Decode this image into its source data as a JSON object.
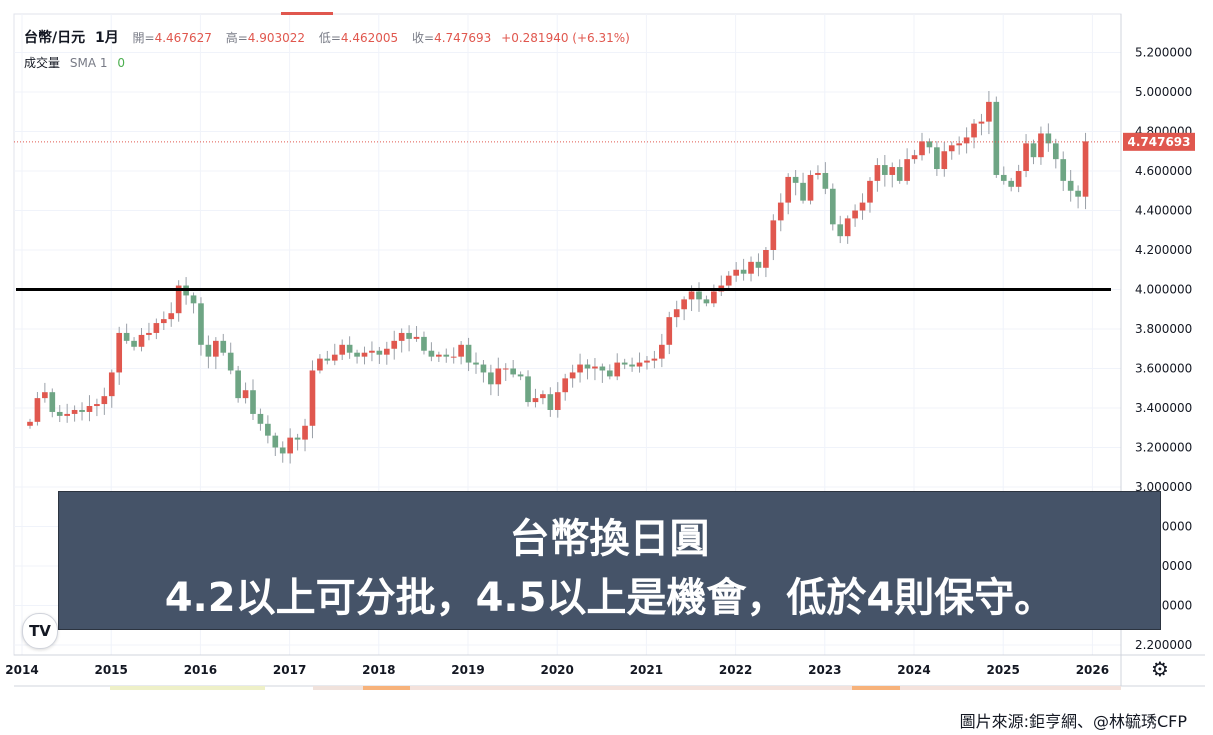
{
  "legend": {
    "symbol": "台幣/日元",
    "period": "1月",
    "open_label": "開=",
    "open": "4.467627",
    "high_label": "高=",
    "high": "4.903022",
    "low_label": "低=",
    "low": "4.462005",
    "close_label": "收=",
    "close": "4.747693",
    "change": "+0.281940 (+6.31%)"
  },
  "volume": {
    "label": "成交量",
    "sma": "SMA 1",
    "value": "0"
  },
  "banner": {
    "line1": "台幣換日圓",
    "line2": "4.2以上可分批，4.5以上是機會，低於4則保守。"
  },
  "credit": "圖片來源:鉅亨網、@林毓琇CFP",
  "logo": "TV",
  "icons": {
    "settings": "gear-icon",
    "logo": "tradingview-logo-icon"
  },
  "colors": {
    "up": "#e0574e",
    "down": "#6ea584",
    "line": "#000000",
    "banner": "#455368",
    "last_price": "#e0574e"
  },
  "chart_data": {
    "type": "candlestick",
    "timeframe": "1月",
    "y_ticks": [
      2.2,
      2.4,
      2.6,
      2.8,
      3.0,
      3.2,
      3.4,
      3.6,
      3.8,
      4.0,
      4.2,
      4.4,
      4.6,
      4.8,
      5.0,
      5.2
    ],
    "y_tick_labels": [
      "2.200000",
      "2.400000",
      "2.600000",
      "2.800000",
      "3.000000",
      "3.200000",
      "3.400000",
      "3.600000",
      "3.800000",
      "4.000000",
      "4.200000",
      "4.400000",
      "4.600000",
      "4.800000",
      "5.000000",
      "5.200000"
    ],
    "x_ticks": [
      "2014",
      "2015",
      "2016",
      "2017",
      "2018",
      "2019",
      "2020",
      "2021",
      "2022",
      "2023",
      "2024",
      "2025",
      "2026"
    ],
    "x_range": [
      2014.0,
      2026.2
    ],
    "last_price": "4.747693",
    "support_level": 4.0,
    "closes": [
      3.33,
      3.45,
      3.48,
      3.38,
      3.36,
      3.37,
      3.39,
      3.38,
      3.41,
      3.42,
      3.46,
      3.58,
      3.78,
      3.74,
      3.71,
      3.77,
      3.78,
      3.83,
      3.85,
      3.88,
      4.02,
      3.97,
      3.93,
      3.72,
      3.66,
      3.74,
      3.68,
      3.59,
      3.45,
      3.49,
      3.37,
      3.32,
      3.26,
      3.2,
      3.17,
      3.25,
      3.24,
      3.31,
      3.59,
      3.65,
      3.64,
      3.67,
      3.72,
      3.68,
      3.66,
      3.68,
      3.69,
      3.67,
      3.7,
      3.74,
      3.78,
      3.75,
      3.76,
      3.69,
      3.66,
      3.67,
      3.66,
      3.66,
      3.72,
      3.63,
      3.62,
      3.58,
      3.52,
      3.6,
      3.6,
      3.57,
      3.56,
      3.43,
      3.45,
      3.47,
      3.39,
      3.48,
      3.55,
      3.58,
      3.62,
      3.6,
      3.61,
      3.59,
      3.56,
      3.63,
      3.62,
      3.61,
      3.63,
      3.64,
      3.65,
      3.72,
      3.86,
      3.9,
      3.95,
      3.99,
      3.95,
      3.93,
      3.99,
      4.02,
      4.07,
      4.1,
      4.08,
      4.14,
      4.11,
      4.2,
      4.35,
      4.44,
      4.57,
      4.54,
      4.45,
      4.58,
      4.59,
      4.51,
      4.33,
      4.27,
      4.36,
      4.4,
      4.44,
      4.55,
      4.63,
      4.58,
      4.62,
      4.55,
      4.66,
      4.68,
      4.75,
      4.72,
      4.61,
      4.7,
      4.73,
      4.74,
      4.77,
      4.84,
      4.85,
      4.95,
      4.58,
      4.55,
      4.52,
      4.6,
      4.74,
      4.67,
      4.79,
      4.74,
      4.66,
      4.55,
      4.5,
      4.47,
      4.75
    ],
    "start": 2014.0,
    "step_months": 1
  }
}
